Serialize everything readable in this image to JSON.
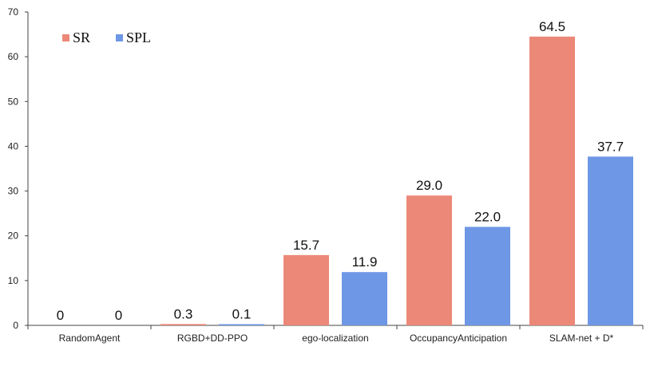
{
  "chart_data": {
    "type": "bar",
    "title": "",
    "xlabel": "",
    "ylabel": "",
    "ylim": [
      0,
      70
    ],
    "yticks": [
      0,
      10,
      20,
      30,
      40,
      50,
      60,
      70
    ],
    "grid": false,
    "legend_position": "top-left",
    "categories": [
      "RandomAgent",
      "RGBD+DD-PPO",
      "ego-localization",
      "OccupancyAnticipation",
      "SLAM-net + D*"
    ],
    "series": [
      {
        "name": "SR",
        "color": "#EC8878",
        "values": [
          0,
          0.3,
          15.7,
          29.0,
          64.5
        ],
        "labels": [
          "0",
          "0.3",
          "15.7",
          "29.0",
          "64.5"
        ]
      },
      {
        "name": "SPL",
        "color": "#6E97E5",
        "values": [
          0,
          0.1,
          11.9,
          22.0,
          37.7
        ],
        "labels": [
          "0",
          "0.1",
          "11.9",
          "22.0",
          "37.7"
        ]
      }
    ]
  }
}
